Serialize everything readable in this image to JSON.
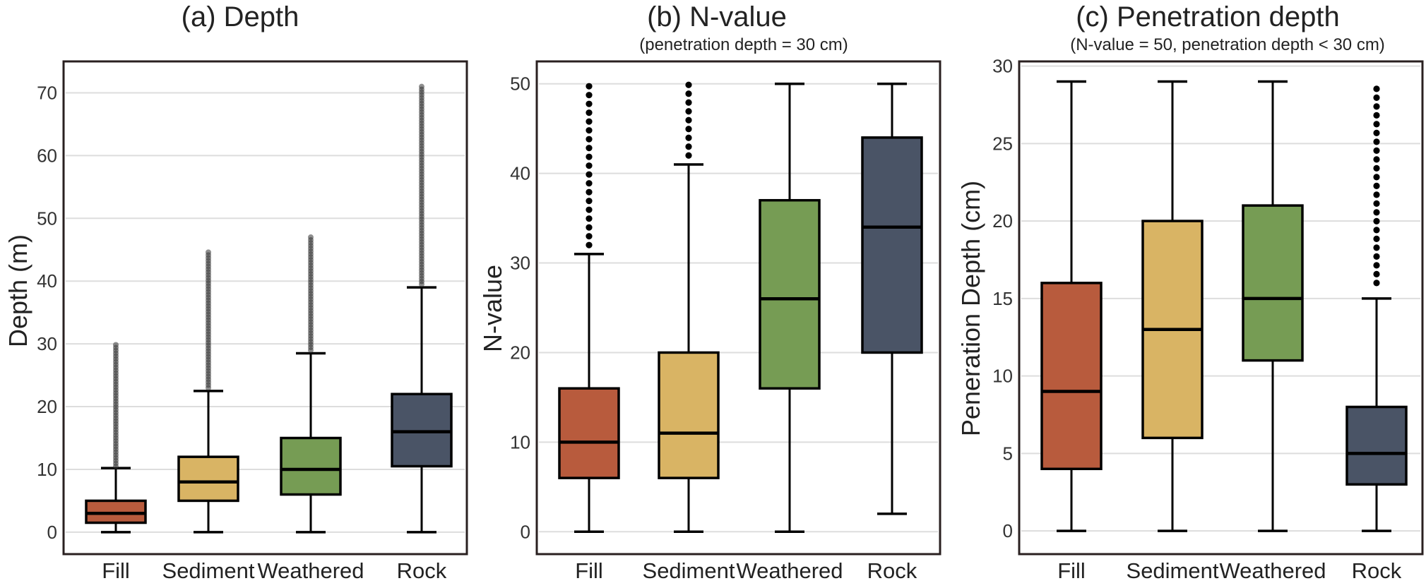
{
  "colors": {
    "fill": "#b85b3d",
    "sediment": "#d9b464",
    "weathered": "#769c54",
    "rock": "#4a5466",
    "frame": "#2a2020",
    "grid": "#dddddd"
  },
  "chart_data": [
    {
      "type": "box",
      "title": "(a) Depth",
      "subtitle": "",
      "ylabel": "Depth (m)",
      "ylim": [
        -3.5,
        75
      ],
      "yticks": [
        "0",
        "10",
        "20",
        "30",
        "40",
        "50",
        "60",
        "70"
      ],
      "grid": true,
      "categories": [
        "Fill",
        "Sediment",
        "Weathered",
        "Rock"
      ],
      "boxes": [
        {
          "name": "Fill",
          "whisker_low": 0,
          "q1": 1.5,
          "median": 3,
          "q3": 5,
          "whisker_high": 10.2,
          "outlier_min": 10.5,
          "outlier_max": 30
        },
        {
          "name": "Sediment",
          "whisker_low": 0,
          "q1": 5,
          "median": 8,
          "q3": 12,
          "whisker_high": 22.5,
          "outlier_min": 23,
          "outlier_max": 45
        },
        {
          "name": "Weathered",
          "whisker_low": 0,
          "q1": 6,
          "median": 10,
          "q3": 15,
          "whisker_high": 28.5,
          "outlier_min": 29,
          "outlier_max": 47
        },
        {
          "name": "Rock",
          "whisker_low": 0,
          "q1": 10.5,
          "median": 16,
          "q3": 22,
          "whisker_high": 39,
          "outlier_min": 39.5,
          "outlier_max": 71
        }
      ]
    },
    {
      "type": "box",
      "title": "(b) N-value",
      "subtitle": "(penetration depth = 30 cm)",
      "ylabel": "N-value",
      "ylim": [
        -2.5,
        52.5
      ],
      "yticks": [
        "0",
        "10",
        "20",
        "30",
        "40",
        "50"
      ],
      "grid": true,
      "categories": [
        "Fill",
        "Sediment",
        "Weathered",
        "Rock"
      ],
      "boxes": [
        {
          "name": "Fill",
          "whisker_low": 0,
          "q1": 6,
          "median": 10,
          "q3": 16,
          "whisker_high": 31,
          "outlier_min": 32,
          "outlier_max": 50
        },
        {
          "name": "Sediment",
          "whisker_low": 0,
          "q1": 6,
          "median": 11,
          "q3": 20,
          "whisker_high": 41,
          "outlier_min": 42,
          "outlier_max": 50
        },
        {
          "name": "Weathered",
          "whisker_low": 0,
          "q1": 16,
          "median": 26,
          "q3": 37,
          "whisker_high": 50
        },
        {
          "name": "Rock",
          "whisker_low": 2,
          "q1": 20,
          "median": 34,
          "q3": 44,
          "whisker_high": 50
        }
      ]
    },
    {
      "type": "box",
      "title": "(c) Penetration depth",
      "subtitle": "(N-value = 50, penetration depth < 30 cm)",
      "ylabel": "Peneration Depth (cm)",
      "ylim": [
        -1.5,
        30.3
      ],
      "yticks": [
        "0",
        "5",
        "10",
        "15",
        "20",
        "25",
        "30"
      ],
      "grid": true,
      "categories": [
        "Fill",
        "Sediment",
        "Weathered",
        "Rock"
      ],
      "boxes": [
        {
          "name": "Fill",
          "whisker_low": 0,
          "q1": 4,
          "median": 9,
          "q3": 16,
          "whisker_high": 29
        },
        {
          "name": "Sediment",
          "whisker_low": 0,
          "q1": 6,
          "median": 13,
          "q3": 20,
          "whisker_high": 29
        },
        {
          "name": "Weathered",
          "whisker_low": 0,
          "q1": 11,
          "median": 15,
          "q3": 21,
          "whisker_high": 29
        },
        {
          "name": "Rock",
          "whisker_low": 0,
          "q1": 3,
          "median": 5,
          "q3": 8,
          "whisker_high": 15,
          "outlier_min": 16,
          "outlier_max": 29
        }
      ]
    }
  ]
}
